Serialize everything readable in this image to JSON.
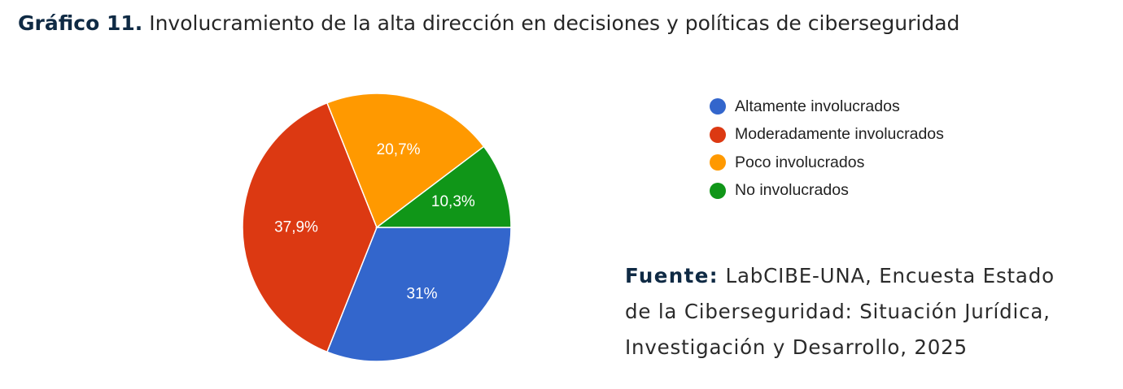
{
  "title": {
    "number": "Gráfico 11.",
    "text": "Involucramiento de la alta dirección en decisiones y políticas de ciberseguridad"
  },
  "chart_data": {
    "type": "pie",
    "slices": [
      {
        "label": "Altamente involucrados",
        "value": 31.0,
        "value_label": "31%",
        "color": "#3366cc"
      },
      {
        "label": "Moderadamente involucrados",
        "value": 37.9,
        "value_label": "37,9%",
        "color": "#dc3912"
      },
      {
        "label": "Poco involucrados",
        "value": 20.7,
        "value_label": "20,7%",
        "color": "#ff9900"
      },
      {
        "label": "No involucrados",
        "value": 10.3,
        "value_label": "10,3%",
        "color": "#109618"
      }
    ],
    "legend_position": "right",
    "start": "3 o'clock",
    "direction": "clockwise"
  },
  "source": {
    "label": "Fuente:",
    "lines": [
      "LabCIBE-UNA, Encuesta Estado",
      "de la Ciberseguridad: Situación Jurídica,",
      "Investigación y Desarrollo, 2025"
    ]
  }
}
